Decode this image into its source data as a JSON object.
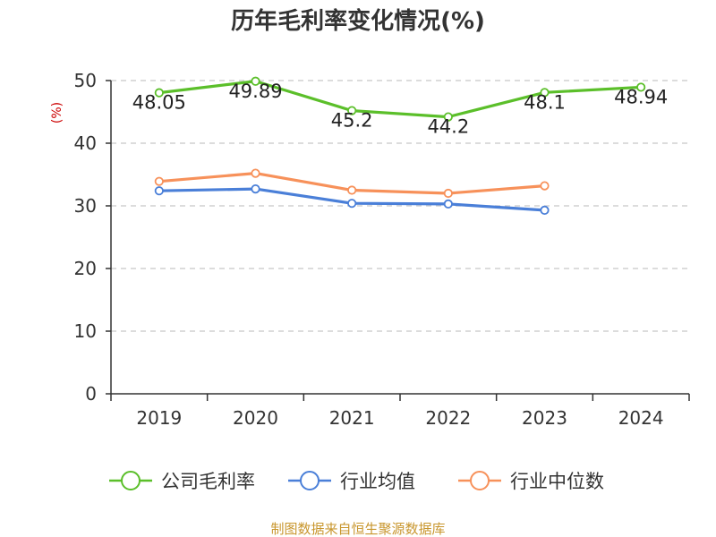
{
  "chart_data": {
    "type": "line",
    "title": "历年毛利率变化情况(%)",
    "ylabel": "(%)",
    "xlabel": "",
    "categories": [
      "2019",
      "2020",
      "2021",
      "2022",
      "2023",
      "2024"
    ],
    "ylim": [
      0,
      50
    ],
    "yticks": [
      0,
      10,
      20,
      30,
      40,
      50
    ],
    "grid": "horizontal dashed",
    "legend_position": "bottom",
    "series": [
      {
        "name": "公司毛利率",
        "color": "#5bbf2a",
        "values": [
          48.05,
          49.89,
          45.2,
          44.2,
          48.1,
          48.94
        ],
        "labels": [
          "48.05",
          "49.89",
          "45.2",
          "44.2",
          "48.1",
          "48.94"
        ]
      },
      {
        "name": "行业均值",
        "color": "#4a7fd8",
        "values": [
          32.4,
          32.7,
          30.4,
          30.3,
          29.3,
          null
        ]
      },
      {
        "name": "行业中位数",
        "color": "#f7915a",
        "values": [
          33.9,
          35.2,
          32.5,
          32.0,
          33.2,
          null
        ]
      }
    ]
  },
  "source": "制图数据来自恒生聚源数据库"
}
